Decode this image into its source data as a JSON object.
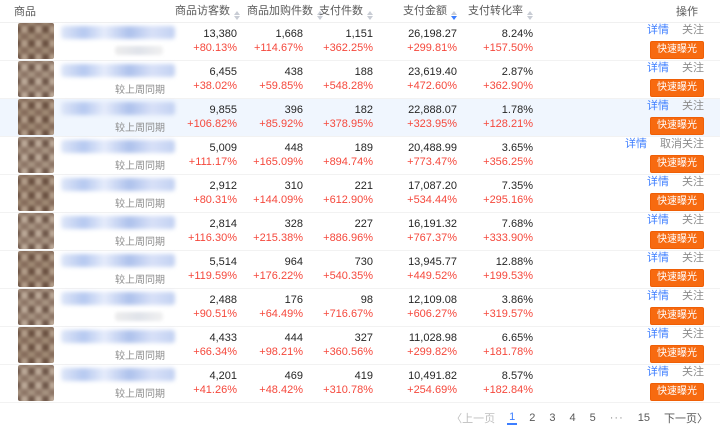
{
  "table": {
    "columns": {
      "product": "商品",
      "visitors": "商品访客数",
      "cart": "商品加购件数",
      "paid": "支付件数",
      "amount": "支付金额",
      "conversion": "支付转化率",
      "actions": "操作"
    },
    "sort": {
      "column": "amount",
      "direction": "desc"
    },
    "compare_label": "较上周同期",
    "rows": [
      {
        "visitors": "13,380",
        "visitors_delta": "+80.13%",
        "cart": "1,668",
        "cart_delta": "+114.67%",
        "paid": "1,151",
        "paid_delta": "+362.25%",
        "amount": "26,198.27",
        "amount_delta": "+299.81%",
        "conv": "8.24%",
        "conv_delta": "+157.50%",
        "follow": "follow",
        "compare_visible": false,
        "highlighted": false
      },
      {
        "visitors": "6,455",
        "visitors_delta": "+38.02%",
        "cart": "438",
        "cart_delta": "+59.85%",
        "paid": "188",
        "paid_delta": "+548.28%",
        "amount": "23,619.40",
        "amount_delta": "+472.60%",
        "conv": "2.87%",
        "conv_delta": "+362.90%",
        "follow": "follow",
        "compare_visible": true,
        "highlighted": false
      },
      {
        "visitors": "9,855",
        "visitors_delta": "+106.82%",
        "cart": "396",
        "cart_delta": "+85.92%",
        "paid": "182",
        "paid_delta": "+378.95%",
        "amount": "22,888.07",
        "amount_delta": "+323.95%",
        "conv": "1.78%",
        "conv_delta": "+128.21%",
        "follow": "follow",
        "compare_visible": true,
        "highlighted": true
      },
      {
        "visitors": "5,009",
        "visitors_delta": "+111.17%",
        "cart": "448",
        "cart_delta": "+165.09%",
        "paid": "189",
        "paid_delta": "+894.74%",
        "amount": "20,488.99",
        "amount_delta": "+773.47%",
        "conv": "3.65%",
        "conv_delta": "+356.25%",
        "follow": "unfollow",
        "compare_visible": true,
        "highlighted": false
      },
      {
        "visitors": "2,912",
        "visitors_delta": "+80.31%",
        "cart": "310",
        "cart_delta": "+144.09%",
        "paid": "221",
        "paid_delta": "+612.90%",
        "amount": "17,087.20",
        "amount_delta": "+534.44%",
        "conv": "7.35%",
        "conv_delta": "+295.16%",
        "follow": "follow",
        "compare_visible": true,
        "highlighted": false
      },
      {
        "visitors": "2,814",
        "visitors_delta": "+116.30%",
        "cart": "328",
        "cart_delta": "+215.38%",
        "paid": "227",
        "paid_delta": "+886.96%",
        "amount": "16,191.32",
        "amount_delta": "+767.37%",
        "conv": "7.68%",
        "conv_delta": "+333.90%",
        "follow": "follow",
        "compare_visible": true,
        "highlighted": false
      },
      {
        "visitors": "5,514",
        "visitors_delta": "+119.59%",
        "cart": "964",
        "cart_delta": "+176.22%",
        "paid": "730",
        "paid_delta": "+540.35%",
        "amount": "13,945.77",
        "amount_delta": "+449.52%",
        "conv": "12.88%",
        "conv_delta": "+199.53%",
        "follow": "follow",
        "compare_visible": true,
        "highlighted": false
      },
      {
        "visitors": "2,488",
        "visitors_delta": "+90.51%",
        "cart": "176",
        "cart_delta": "+64.49%",
        "paid": "98",
        "paid_delta": "+716.67%",
        "amount": "12,109.08",
        "amount_delta": "+606.27%",
        "conv": "3.86%",
        "conv_delta": "+319.57%",
        "follow": "follow",
        "compare_visible": false,
        "highlighted": false
      },
      {
        "visitors": "4,433",
        "visitors_delta": "+66.34%",
        "cart": "444",
        "cart_delta": "+98.21%",
        "paid": "327",
        "paid_delta": "+360.56%",
        "amount": "11,028.98",
        "amount_delta": "+299.82%",
        "conv": "6.65%",
        "conv_delta": "+181.78%",
        "follow": "follow",
        "compare_visible": true,
        "highlighted": false
      },
      {
        "visitors": "4,201",
        "visitors_delta": "+41.26%",
        "cart": "469",
        "cart_delta": "+48.42%",
        "paid": "419",
        "paid_delta": "+310.78%",
        "amount": "10,491.82",
        "amount_delta": "+254.69%",
        "conv": "8.57%",
        "conv_delta": "+182.84%",
        "follow": "follow",
        "compare_visible": true,
        "highlighted": false
      }
    ]
  },
  "actions": {
    "detail": "详情",
    "follow": "关注",
    "unfollow": "取消关注",
    "boost": "快速曝光"
  },
  "pagination": {
    "prev": "〈上一页",
    "next": "下一页〉",
    "pages": [
      "1",
      "2",
      "3",
      "4",
      "5",
      "···",
      "15"
    ],
    "active": "1"
  },
  "colors": {
    "accent_blue": "#3D7EFF",
    "delta_red": "#F5483C",
    "button_orange": "#F76A10",
    "row_highlight": "#F0F6FE"
  }
}
